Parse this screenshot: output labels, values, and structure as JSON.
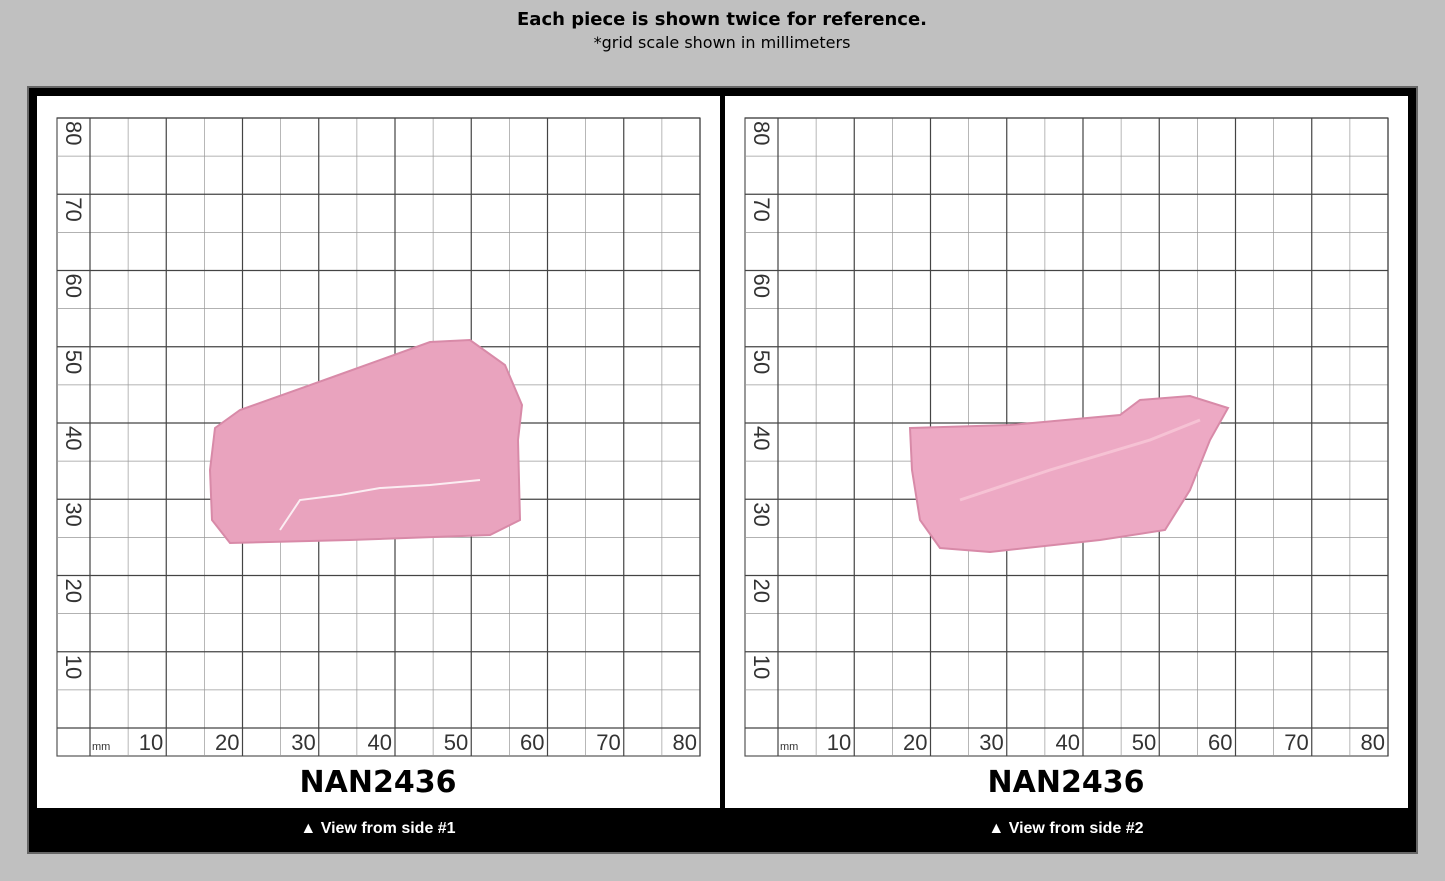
{
  "header": {
    "title": "Each piece is shown twice for reference.",
    "subtitle": "*grid scale shown in millimeters"
  },
  "scale": {
    "unit": "mm",
    "ticks": [
      10,
      20,
      30,
      40,
      50,
      60,
      70,
      80
    ]
  },
  "panels": [
    {
      "label": "NAN2436",
      "caption": "▲ View from side #1"
    },
    {
      "label": "NAN2436",
      "caption": "▲ View from side #2"
    }
  ]
}
